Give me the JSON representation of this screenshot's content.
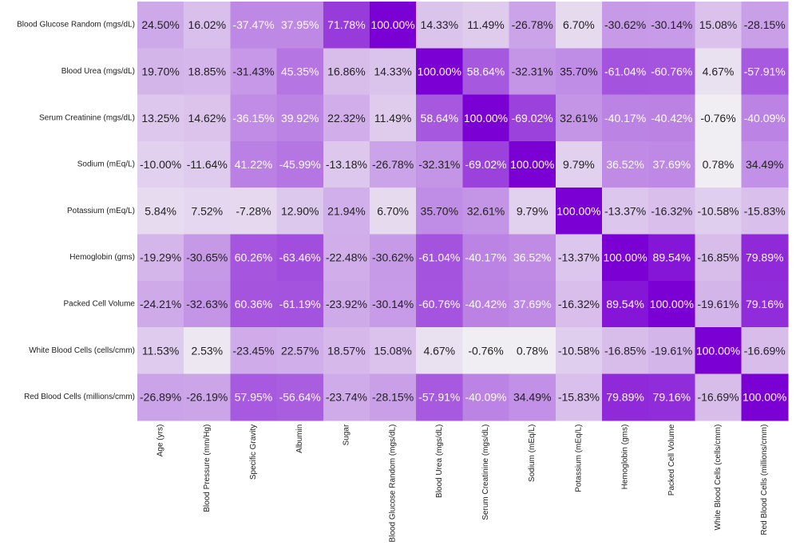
{
  "chart_data": {
    "type": "heatmap",
    "value_suffix": "%",
    "row_labels": [
      "Blood Glucose Random (mgs/dL)",
      "Blood Urea (mgs/dL)",
      "Serum Creatinine (mgs/dL)",
      "Sodium (mEq/L)",
      "Potassium (mEq/L)",
      "Hemoglobin (gms)",
      "Packed Cell Volume",
      "White Blood Cells (cells/cmm)",
      "Red Blood Cells (millions/cmm)"
    ],
    "col_labels": [
      "Age (yrs)",
      "Blood Pressure (mm/Hg)",
      "Specific Gravity",
      "Albumin",
      "Sugar",
      "Blood Glucose Random (mgs/dL)",
      "Blood Urea (mgs/dL)",
      "Serum Creatinine (mgs/dL)",
      "Sodium (mEq/L)",
      "Potassium (mEq/L)",
      "Hemoglobin (gms)",
      "Packed Cell Volume",
      "White Blood Cells (cells/cmm)",
      "Red Blood Cells (millions/cmm)"
    ],
    "values": [
      [
        "24.50",
        "16.02",
        "-37.47",
        "37.95",
        "71.78",
        "100.00",
        "14.33",
        "11.49",
        "-26.78",
        "6.70",
        "-30.62",
        "-30.14",
        "15.08",
        "-28.15"
      ],
      [
        "19.70",
        "18.85",
        "-31.43",
        "45.35",
        "16.86",
        "14.33",
        "100.00",
        "58.64",
        "-32.31",
        "35.70",
        "-61.04",
        "-60.76",
        "4.67",
        "-57.91"
      ],
      [
        "13.25",
        "14.62",
        "-36.15",
        "39.92",
        "22.32",
        "11.49",
        "58.64",
        "100.00",
        "-69.02",
        "32.61",
        "-40.17",
        "-40.42",
        "-0.76",
        "-40.09"
      ],
      [
        "-10.00",
        "-11.64",
        "41.22",
        "-45.99",
        "-13.18",
        "-26.78",
        "-32.31",
        "-69.02",
        "100.00",
        "9.79",
        "36.52",
        "37.69",
        "0.78",
        "34.49"
      ],
      [
        "5.84",
        "7.52",
        "-7.28",
        "12.90",
        "21.94",
        "6.70",
        "35.70",
        "32.61",
        "9.79",
        "100.00",
        "-13.37",
        "-16.32",
        "-10.58",
        "-15.83"
      ],
      [
        "-19.29",
        "-30.65",
        "60.26",
        "-63.46",
        "-22.48",
        "-30.62",
        "-61.04",
        "-40.17",
        "36.52",
        "-13.37",
        "100.00",
        "89.54",
        "-16.85",
        "79.89"
      ],
      [
        "-24.21",
        "-32.63",
        "60.36",
        "-61.19",
        "-23.92",
        "-30.14",
        "-60.76",
        "-40.42",
        "37.69",
        "-16.32",
        "89.54",
        "100.00",
        "-19.61",
        "79.16"
      ],
      [
        "11.53",
        "2.53",
        "-23.45",
        "22.57",
        "18.57",
        "15.08",
        "4.67",
        "-0.76",
        "0.78",
        "-10.58",
        "-16.85",
        "-19.61",
        "100.00",
        "-16.69"
      ],
      [
        "-26.89",
        "-26.19",
        "57.95",
        "-56.64",
        "-23.74",
        "-28.15",
        "-57.91",
        "-40.09",
        "34.49",
        "-15.83",
        "79.89",
        "79.16",
        "-16.69",
        "100.00"
      ]
    ],
    "color_low": "#f2f2f2",
    "color_high": "#7b00d4",
    "text_dark": "#222222",
    "text_light": "#ffffff",
    "legend": "none"
  }
}
